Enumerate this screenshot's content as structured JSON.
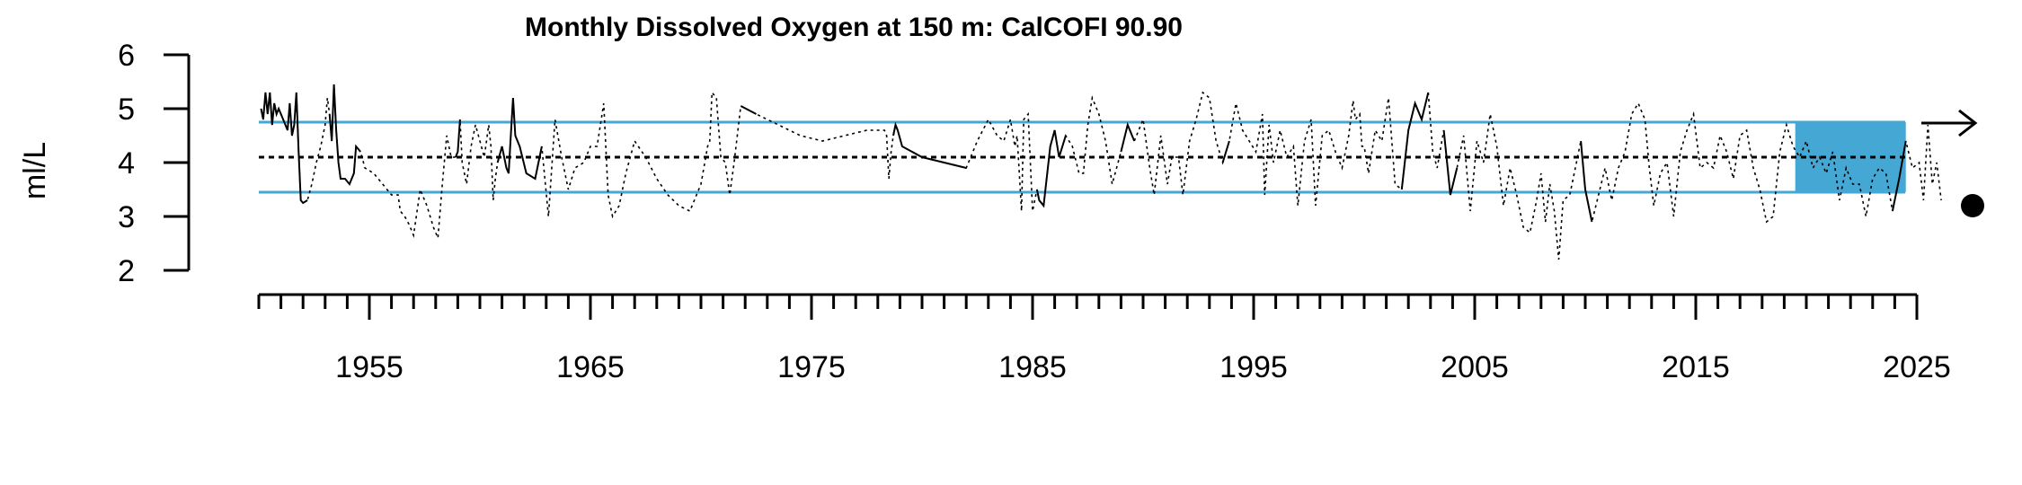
{
  "chart_data": {
    "type": "line",
    "title": "Monthly Dissolved Oxygen at 150 m: CalCOFI 90.90",
    "ylabel": "ml/L",
    "xlabel": "",
    "xlim": [
      1950,
      2025
    ],
    "ylim": [
      2,
      6
    ],
    "y_ticks": [
      "2",
      "3",
      "4",
      "5",
      "6"
    ],
    "x_tick_labels": [
      "1955",
      "1965",
      "1975",
      "1985",
      "1995",
      "2005",
      "2015",
      "2025"
    ],
    "grid": false,
    "reference_lines": {
      "mean": 4.1,
      "upper": 4.75,
      "lower": 3.45
    },
    "recent_window": {
      "start": 2019.5,
      "end": 2024.5
    },
    "trend_symbol": "arrow-right-icon",
    "mean_symbol": "filled-circle-icon",
    "colors": {
      "band": "#45A7D3",
      "line": "#000000"
    },
    "series": [
      {
        "points": [
          [
            1950.1,
            5.0
          ],
          [
            1950.2,
            4.8
          ],
          [
            1950.3,
            5.3
          ],
          [
            1950.4,
            4.9
          ],
          [
            1950.5,
            5.3
          ],
          [
            1950.6,
            4.7
          ],
          [
            1950.7,
            5.1
          ],
          [
            1950.8,
            4.9
          ],
          [
            1950.9,
            5.0
          ],
          [
            1951.0,
            4.9
          ],
          [
            1951.1,
            4.8
          ],
          [
            1951.3,
            4.6
          ],
          [
            1951.4,
            5.1
          ],
          [
            1951.5,
            4.5
          ],
          [
            1951.6,
            4.7
          ],
          [
            1951.7,
            5.3
          ],
          [
            1951.8,
            4.2
          ],
          [
            1951.9,
            3.3
          ],
          [
            1952.0,
            3.25
          ],
          [
            1952.2,
            3.3
          ],
          [
            1952.4,
            3.6
          ],
          [
            1952.6,
            4.0
          ],
          [
            1952.8,
            4.3
          ],
          [
            1953.0,
            4.7
          ],
          [
            1953.1,
            5.2
          ],
          [
            1953.2,
            4.9
          ],
          [
            1953.3,
            4.4
          ],
          [
            1953.4,
            5.45
          ],
          [
            1953.5,
            4.6
          ],
          [
            1953.6,
            4.0
          ],
          [
            1953.7,
            3.7
          ],
          [
            1953.9,
            3.7
          ],
          [
            1954.1,
            3.6
          ],
          [
            1954.3,
            3.8
          ],
          [
            1954.4,
            4.3
          ],
          [
            1954.6,
            4.2
          ],
          [
            1954.8,
            3.9
          ],
          [
            1955.2,
            3.8
          ],
          [
            1955.6,
            3.6
          ],
          [
            1956.0,
            3.4
          ],
          [
            1956.3,
            3.4
          ],
          [
            1956.4,
            3.1
          ],
          [
            1956.6,
            3.0
          ],
          [
            1956.8,
            2.85
          ],
          [
            1957.0,
            2.65
          ],
          [
            1957.3,
            3.5
          ],
          [
            1957.6,
            3.2
          ],
          [
            1957.9,
            2.8
          ],
          [
            1958.1,
            2.6
          ],
          [
            1958.3,
            3.6
          ],
          [
            1958.5,
            4.5
          ],
          [
            1958.7,
            4.1
          ],
          [
            1958.9,
            4.1
          ],
          [
            1959.0,
            4.2
          ],
          [
            1959.1,
            4.8
          ],
          [
            1959.2,
            4.0
          ],
          [
            1959.4,
            3.6
          ],
          [
            1959.6,
            4.3
          ],
          [
            1959.8,
            4.7
          ],
          [
            1960.0,
            4.4
          ],
          [
            1960.2,
            4.1
          ],
          [
            1960.4,
            4.7
          ],
          [
            1960.5,
            4.3
          ],
          [
            1960.6,
            3.3
          ],
          [
            1960.7,
            3.7
          ],
          [
            1960.8,
            4.0
          ],
          [
            1961.0,
            4.3
          ],
          [
            1961.2,
            3.9
          ],
          [
            1961.3,
            3.8
          ],
          [
            1961.4,
            4.5
          ],
          [
            1961.5,
            5.2
          ],
          [
            1961.6,
            4.5
          ],
          [
            1961.8,
            4.3
          ],
          [
            1962.1,
            3.8
          ],
          [
            1962.5,
            3.7
          ],
          [
            1962.8,
            4.3
          ],
          [
            1963.1,
            3.0
          ],
          [
            1963.4,
            4.8
          ],
          [
            1963.7,
            4.1
          ],
          [
            1964.0,
            3.5
          ],
          [
            1964.3,
            3.9
          ],
          [
            1964.7,
            4.0
          ],
          [
            1965.0,
            4.3
          ],
          [
            1965.3,
            4.3
          ],
          [
            1965.6,
            5.1
          ],
          [
            1965.8,
            3.4
          ],
          [
            1966.0,
            3.0
          ],
          [
            1966.3,
            3.2
          ],
          [
            1966.6,
            3.8
          ],
          [
            1967.0,
            4.4
          ],
          [
            1967.5,
            4.1
          ],
          [
            1968.0,
            3.7
          ],
          [
            1968.5,
            3.4
          ],
          [
            1969.0,
            3.2
          ],
          [
            1969.5,
            3.1
          ],
          [
            1970.0,
            3.6
          ],
          [
            1970.3,
            4.3
          ],
          [
            1970.4,
            4.4
          ],
          [
            1970.5,
            5.3
          ],
          [
            1970.7,
            5.2
          ],
          [
            1970.9,
            4.1
          ],
          [
            1971.1,
            4.0
          ],
          [
            1971.3,
            3.4
          ],
          [
            1971.5,
            4.0
          ],
          [
            1971.8,
            5.05
          ],
          [
            1972.5,
            4.9
          ],
          [
            1973.5,
            4.7
          ],
          [
            1974.5,
            4.5
          ],
          [
            1975.5,
            4.4
          ],
          [
            1976.5,
            4.5
          ],
          [
            1977.5,
            4.6
          ],
          [
            1978.3,
            4.6
          ],
          [
            1978.4,
            4.5
          ],
          [
            1978.5,
            3.7
          ],
          [
            1978.6,
            4.2
          ],
          [
            1978.7,
            4.5
          ],
          [
            1978.8,
            4.7
          ],
          [
            1978.9,
            4.6
          ],
          [
            1979.1,
            4.3
          ],
          [
            1980.0,
            4.1
          ],
          [
            1981.0,
            4.0
          ],
          [
            1982.0,
            3.9
          ],
          [
            1982.5,
            4.4
          ],
          [
            1983.0,
            4.8
          ],
          [
            1983.4,
            4.5
          ],
          [
            1983.7,
            4.4
          ],
          [
            1984.0,
            4.8
          ],
          [
            1984.2,
            4.3
          ],
          [
            1984.3,
            4.5
          ],
          [
            1984.5,
            3.1
          ],
          [
            1984.6,
            4.8
          ],
          [
            1984.8,
            4.9
          ],
          [
            1985.0,
            3.1
          ],
          [
            1985.2,
            3.5
          ],
          [
            1985.3,
            3.3
          ],
          [
            1985.5,
            3.2
          ],
          [
            1985.8,
            4.3
          ],
          [
            1986.0,
            4.6
          ],
          [
            1986.2,
            4.1
          ],
          [
            1986.5,
            4.5
          ],
          [
            1986.8,
            4.3
          ],
          [
            1987.1,
            3.8
          ],
          [
            1987.3,
            3.8
          ],
          [
            1987.5,
            4.7
          ],
          [
            1987.7,
            5.2
          ],
          [
            1988.0,
            4.9
          ],
          [
            1988.3,
            4.4
          ],
          [
            1988.6,
            3.6
          ],
          [
            1989.0,
            4.2
          ],
          [
            1989.3,
            4.7
          ],
          [
            1989.6,
            4.4
          ],
          [
            1990.0,
            4.8
          ],
          [
            1990.3,
            3.9
          ],
          [
            1990.5,
            3.4
          ],
          [
            1990.8,
            4.5
          ],
          [
            1991.1,
            3.6
          ],
          [
            1991.3,
            4.1
          ],
          [
            1991.6,
            4.1
          ],
          [
            1991.8,
            3.4
          ],
          [
            1992.1,
            4.4
          ],
          [
            1992.4,
            4.8
          ],
          [
            1992.7,
            5.3
          ],
          [
            1993.0,
            5.2
          ],
          [
            1993.3,
            4.4
          ],
          [
            1993.6,
            4.0
          ],
          [
            1993.9,
            4.4
          ],
          [
            1994.2,
            5.1
          ],
          [
            1994.5,
            4.6
          ],
          [
            1994.8,
            4.4
          ],
          [
            1995.1,
            4.2
          ],
          [
            1995.4,
            4.9
          ],
          [
            1995.5,
            3.4
          ],
          [
            1995.7,
            4.7
          ],
          [
            1995.9,
            4.0
          ],
          [
            1996.2,
            4.6
          ],
          [
            1996.5,
            4.1
          ],
          [
            1996.8,
            4.3
          ],
          [
            1997.0,
            3.2
          ],
          [
            1997.3,
            4.4
          ],
          [
            1997.6,
            4.8
          ],
          [
            1997.8,
            3.2
          ],
          [
            1998.1,
            4.5
          ],
          [
            1998.4,
            4.6
          ],
          [
            1998.7,
            4.2
          ],
          [
            1999.0,
            3.9
          ],
          [
            1999.3,
            4.5
          ],
          [
            1999.5,
            5.15
          ],
          [
            1999.6,
            4.8
          ],
          [
            1999.8,
            4.9
          ],
          [
            1999.9,
            4.3
          ],
          [
            2000.0,
            4.3
          ],
          [
            2000.2,
            3.8
          ],
          [
            2000.5,
            4.6
          ],
          [
            2000.8,
            4.4
          ],
          [
            2001.1,
            5.2
          ],
          [
            2001.4,
            3.6
          ],
          [
            2001.7,
            3.5
          ],
          [
            2002.0,
            4.6
          ],
          [
            2002.3,
            5.1
          ],
          [
            2002.6,
            4.8
          ],
          [
            2002.9,
            5.3
          ],
          [
            2003.1,
            4.2
          ],
          [
            2003.3,
            3.9
          ],
          [
            2003.6,
            4.6
          ],
          [
            2003.9,
            3.4
          ],
          [
            2004.2,
            3.9
          ],
          [
            2004.5,
            4.5
          ],
          [
            2004.8,
            3.1
          ],
          [
            2005.1,
            4.4
          ],
          [
            2005.4,
            4.0
          ],
          [
            2005.7,
            4.9
          ],
          [
            2006.0,
            4.3
          ],
          [
            2006.3,
            3.2
          ],
          [
            2006.6,
            3.9
          ],
          [
            2006.9,
            3.4
          ],
          [
            2007.2,
            2.8
          ],
          [
            2007.5,
            2.7
          ],
          [
            2007.8,
            3.3
          ],
          [
            2008.0,
            3.8
          ],
          [
            2008.2,
            2.9
          ],
          [
            2008.4,
            3.6
          ],
          [
            2008.6,
            3.1
          ],
          [
            2008.8,
            2.2
          ],
          [
            2009.0,
            3.3
          ],
          [
            2009.3,
            3.4
          ],
          [
            2009.6,
            4.0
          ],
          [
            2009.8,
            4.4
          ],
          [
            2010.0,
            3.5
          ],
          [
            2010.3,
            2.9
          ],
          [
            2010.6,
            3.4
          ],
          [
            2010.9,
            3.9
          ],
          [
            2011.2,
            3.3
          ],
          [
            2011.5,
            3.9
          ],
          [
            2011.8,
            4.2
          ],
          [
            2012.1,
            4.9
          ],
          [
            2012.4,
            5.1
          ],
          [
            2012.7,
            4.8
          ],
          [
            2012.9,
            3.9
          ],
          [
            2013.1,
            3.2
          ],
          [
            2013.4,
            3.8
          ],
          [
            2013.7,
            4.0
          ],
          [
            2014.0,
            3.0
          ],
          [
            2014.3,
            4.2
          ],
          [
            2014.6,
            4.6
          ],
          [
            2014.9,
            4.9
          ],
          [
            2015.2,
            3.9
          ],
          [
            2015.5,
            4.0
          ],
          [
            2015.8,
            3.9
          ],
          [
            2016.1,
            4.5
          ],
          [
            2016.4,
            4.2
          ],
          [
            2016.7,
            3.7
          ],
          [
            2017.0,
            4.5
          ],
          [
            2017.3,
            4.6
          ],
          [
            2017.6,
            3.9
          ],
          [
            2017.9,
            3.5
          ],
          [
            2018.2,
            2.9
          ],
          [
            2018.5,
            3.0
          ],
          [
            2018.8,
            4.2
          ],
          [
            2019.1,
            4.7
          ],
          [
            2019.4,
            4.3
          ],
          [
            2019.7,
            4.1
          ],
          [
            2020.0,
            4.4
          ],
          [
            2020.3,
            3.9
          ],
          [
            2020.6,
            4.1
          ],
          [
            2020.9,
            3.8
          ],
          [
            2021.2,
            4.2
          ],
          [
            2021.5,
            3.3
          ],
          [
            2021.8,
            3.9
          ],
          [
            2022.1,
            3.6
          ],
          [
            2022.4,
            3.6
          ],
          [
            2022.7,
            3.0
          ],
          [
            2023.0,
            3.7
          ],
          [
            2023.3,
            3.9
          ],
          [
            2023.6,
            3.8
          ],
          [
            2023.9,
            3.1
          ],
          [
            2024.2,
            3.7
          ],
          [
            2024.5,
            4.4
          ],
          [
            2024.8,
            3.9
          ],
          [
            2025.1,
            4.0
          ],
          [
            2025.3,
            3.3
          ],
          [
            2025.5,
            4.7
          ],
          [
            2025.7,
            3.6
          ],
          [
            2025.9,
            4.0
          ],
          [
            2026.1,
            3.3
          ]
        ],
        "solid_segments": [
          [
            0,
            19
          ],
          [
            25,
            35
          ],
          [
            52,
            54
          ],
          [
            65,
            75
          ],
          [
            104,
            105
          ],
          [
            115,
            121
          ],
          [
            133,
            139
          ],
          [
            148,
            150
          ],
          [
            164,
            165
          ],
          [
            196,
            200
          ],
          [
            203,
            205
          ],
          [
            226,
            228
          ],
          [
            274,
            276
          ]
        ]
      }
    ]
  }
}
